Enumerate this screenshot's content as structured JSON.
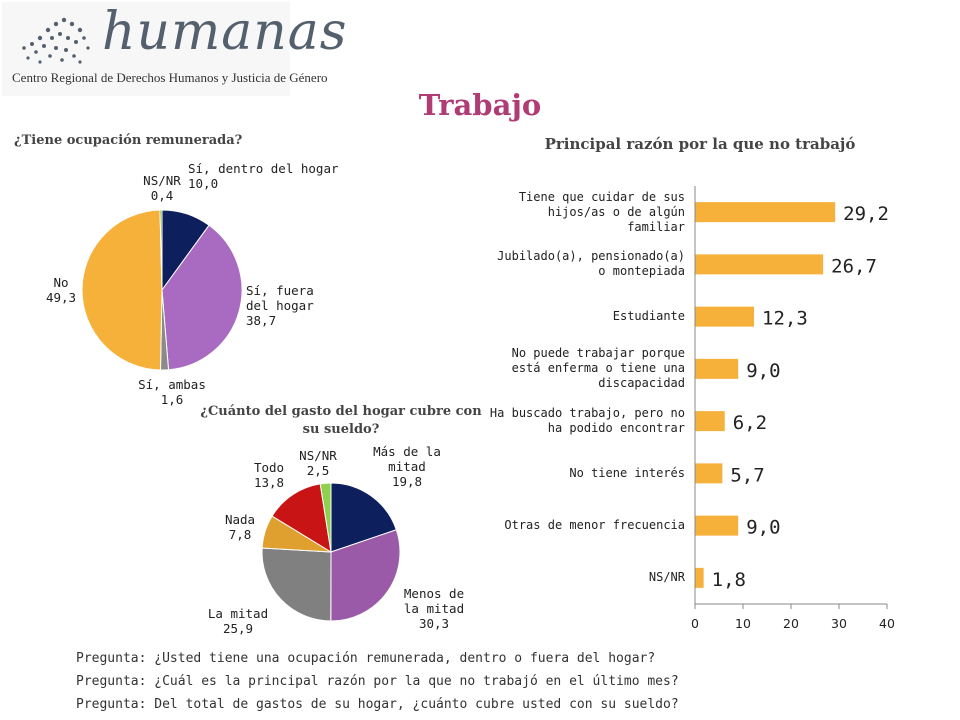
{
  "logo": {
    "word": "humanas",
    "subtitle": "Centro Regional de Derechos Humanos y Justicia de Género"
  },
  "title": "Trabajo",
  "questions": [
    "Pregunta: ¿Usted tiene una ocupación remunerada, dentro o fuera del hogar?",
    "Pregunta: ¿Cuál es la principal razón por la que no trabajó en el último mes?",
    "Pregunta: Del total de gastos de su hogar, ¿cuánto cubre usted con su sueldo?"
  ],
  "chart_data": [
    {
      "type": "pie",
      "title": "¿Tiene ocupación remunerada?",
      "slices": [
        {
          "label": "Sí, dentro del hogar",
          "value": 10.0,
          "display": "10,0",
          "color": "#0d1f5c"
        },
        {
          "label": "Sí, fuera del hogar",
          "value": 38.7,
          "display": "38,7",
          "color": "#a86bc1"
        },
        {
          "label": "Sí, ambas",
          "value": 1.6,
          "display": "1,6",
          "color": "#8a8a8a"
        },
        {
          "label": "No",
          "value": 49.3,
          "display": "49,3",
          "color": "#f6b13b"
        },
        {
          "label": "NS/NR",
          "value": 0.4,
          "display": "0,4",
          "color": "#5aa02c"
        }
      ]
    },
    {
      "type": "bar",
      "orientation": "horizontal",
      "title": "Principal razón por la que no trabajó",
      "categories": [
        "Tiene que cuidar de sus hijos/as o de algún familiar",
        "Jubilado(a), pensionado(a) o montepiada",
        "Estudiante",
        "No puede trabajar porque está enferma o tiene una discapacidad",
        "Ha buscado trabajo, pero no ha podido encontrar",
        "No tiene interés",
        "Otras de menor frecuencia",
        "NS/NR"
      ],
      "values": [
        29.2,
        26.7,
        12.3,
        9.0,
        6.2,
        5.7,
        9.0,
        1.8
      ],
      "value_labels": [
        "29,2",
        "26,7",
        "12,3",
        "9,0",
        "6,2",
        "5,7",
        "9,0",
        "1,8"
      ],
      "xlim": [
        0,
        40
      ],
      "xticks": [
        0,
        10,
        20,
        30,
        40
      ],
      "color": "#f6b13b"
    },
    {
      "type": "pie",
      "title": "¿Cuánto del gasto del hogar cubre con su sueldo?",
      "slices": [
        {
          "label": "Más de la mitad",
          "value": 19.8,
          "display": "19,8",
          "color": "#0d1f5c"
        },
        {
          "label": "Menos de la mitad",
          "value": 30.3,
          "display": "30,3",
          "color": "#9a5aa8"
        },
        {
          "label": "La mitad",
          "value": 25.9,
          "display": "25,9",
          "color": "#808080"
        },
        {
          "label": "Nada",
          "value": 7.8,
          "display": "7,8",
          "color": "#e0a030"
        },
        {
          "label": "Todo",
          "value": 13.8,
          "display": "13,8",
          "color": "#c81414"
        },
        {
          "label": "NS/NR",
          "value": 2.5,
          "display": "2,5",
          "color": "#8fd14f"
        }
      ]
    }
  ]
}
